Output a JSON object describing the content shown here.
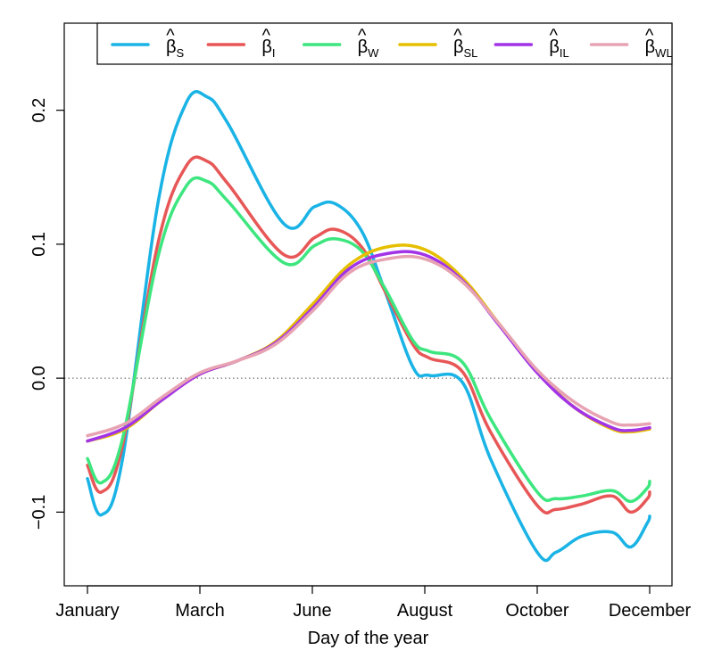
{
  "chart_data": {
    "type": "line",
    "title": "",
    "xlabel": "Day of the year",
    "ylabel": "",
    "xlim": [
      0,
      12
    ],
    "ylim": [
      -0.155,
      0.265
    ],
    "grid": false,
    "legend": "top",
    "hline": 0,
    "x_tick_labels": [
      {
        "value": 0,
        "label": "January"
      },
      {
        "value": 2.4,
        "label": "March"
      },
      {
        "value": 4.8,
        "label": "June"
      },
      {
        "value": 7.2,
        "label": "August"
      },
      {
        "value": 9.6,
        "label": "October"
      },
      {
        "value": 12,
        "label": "December"
      }
    ],
    "y_ticks": [
      {
        "value": -0.1,
        "label": "−0.1"
      },
      {
        "value": 0.0,
        "label": "0.0"
      },
      {
        "value": 0.1,
        "label": "0.1"
      },
      {
        "value": 0.2,
        "label": "0.2"
      }
    ],
    "series": [
      {
        "name": "β_S",
        "hat": "β",
        "sub": "S",
        "color": "#1ab3e6",
        "x": [
          0,
          0.3,
          0.75,
          1.5,
          2.1,
          2.55,
          3.0,
          4.2,
          4.85,
          5.3,
          5.85,
          6.35,
          6.95,
          7.3,
          8.0,
          8.6,
          9.6,
          10.0,
          10.55,
          11.2,
          11.6,
          11.95,
          12
        ],
        "y": [
          -0.075,
          -0.102,
          -0.06,
          0.13,
          0.205,
          0.21,
          0.19,
          0.115,
          0.128,
          0.13,
          0.11,
          0.065,
          0.008,
          0.002,
          -0.003,
          -0.06,
          -0.13,
          -0.13,
          -0.118,
          -0.115,
          -0.126,
          -0.108,
          -0.103
        ]
      },
      {
        "name": "β_I",
        "hat": "β",
        "sub": "I",
        "color": "#e85757",
        "x": [
          0,
          0.3,
          0.75,
          1.5,
          2.1,
          2.55,
          3.0,
          4.2,
          4.85,
          5.3,
          5.85,
          6.35,
          6.95,
          7.3,
          8.0,
          8.6,
          9.6,
          10.0,
          10.55,
          11.2,
          11.6,
          11.95,
          12
        ],
        "y": [
          -0.065,
          -0.085,
          -0.05,
          0.1,
          0.158,
          0.162,
          0.145,
          0.092,
          0.105,
          0.111,
          0.098,
          0.065,
          0.025,
          0.015,
          0.005,
          -0.04,
          -0.095,
          -0.098,
          -0.094,
          -0.088,
          -0.1,
          -0.09,
          -0.085
        ]
      },
      {
        "name": "β_W",
        "hat": "β",
        "sub": "W",
        "color": "#3ee67f",
        "x": [
          0,
          0.3,
          0.75,
          1.5,
          2.1,
          2.55,
          3.0,
          4.2,
          4.85,
          5.3,
          5.85,
          6.35,
          6.95,
          7.3,
          8.0,
          8.6,
          9.6,
          10.0,
          10.55,
          11.2,
          11.6,
          11.95,
          12
        ],
        "y": [
          -0.06,
          -0.078,
          -0.045,
          0.09,
          0.143,
          0.147,
          0.132,
          0.086,
          0.099,
          0.104,
          0.095,
          0.067,
          0.028,
          0.02,
          0.012,
          -0.03,
          -0.085,
          -0.09,
          -0.088,
          -0.084,
          -0.092,
          -0.082,
          -0.077
        ]
      },
      {
        "name": "β_SL",
        "hat": "β",
        "sub": "SL",
        "color": "#e6c000",
        "x": [
          0,
          0.8,
          1.6,
          2.4,
          3.2,
          4.0,
          4.8,
          5.6,
          6.4,
          7.2,
          8.0,
          8.8,
          9.6,
          10.4,
          11.2,
          11.6,
          12
        ],
        "y": [
          -0.047,
          -0.038,
          -0.016,
          0.003,
          0.013,
          0.027,
          0.055,
          0.085,
          0.098,
          0.096,
          0.075,
          0.04,
          0.005,
          -0.022,
          -0.038,
          -0.04,
          -0.038
        ]
      },
      {
        "name": "β_IL",
        "hat": "β",
        "sub": "IL",
        "color": "#a233e6",
        "x": [
          0,
          0.8,
          1.6,
          2.4,
          3.2,
          4.0,
          4.8,
          5.6,
          6.4,
          7.2,
          8.0,
          8.8,
          9.6,
          10.4,
          11.2,
          11.6,
          12
        ],
        "y": [
          -0.047,
          -0.037,
          -0.016,
          0.003,
          0.013,
          0.026,
          0.052,
          0.082,
          0.093,
          0.092,
          0.073,
          0.039,
          0.004,
          -0.022,
          -0.037,
          -0.039,
          -0.037
        ]
      },
      {
        "name": "β_WL",
        "hat": "β",
        "sub": "WL",
        "color": "#e8a3b3",
        "x": [
          0,
          0.8,
          1.6,
          2.4,
          3.2,
          4.0,
          4.8,
          5.6,
          6.4,
          7.2,
          8.0,
          8.8,
          9.6,
          10.4,
          11.2,
          11.6,
          12
        ],
        "y": [
          -0.043,
          -0.034,
          -0.014,
          0.004,
          0.013,
          0.025,
          0.05,
          0.079,
          0.089,
          0.089,
          0.072,
          0.04,
          0.006,
          -0.018,
          -0.033,
          -0.035,
          -0.034
        ]
      }
    ]
  }
}
